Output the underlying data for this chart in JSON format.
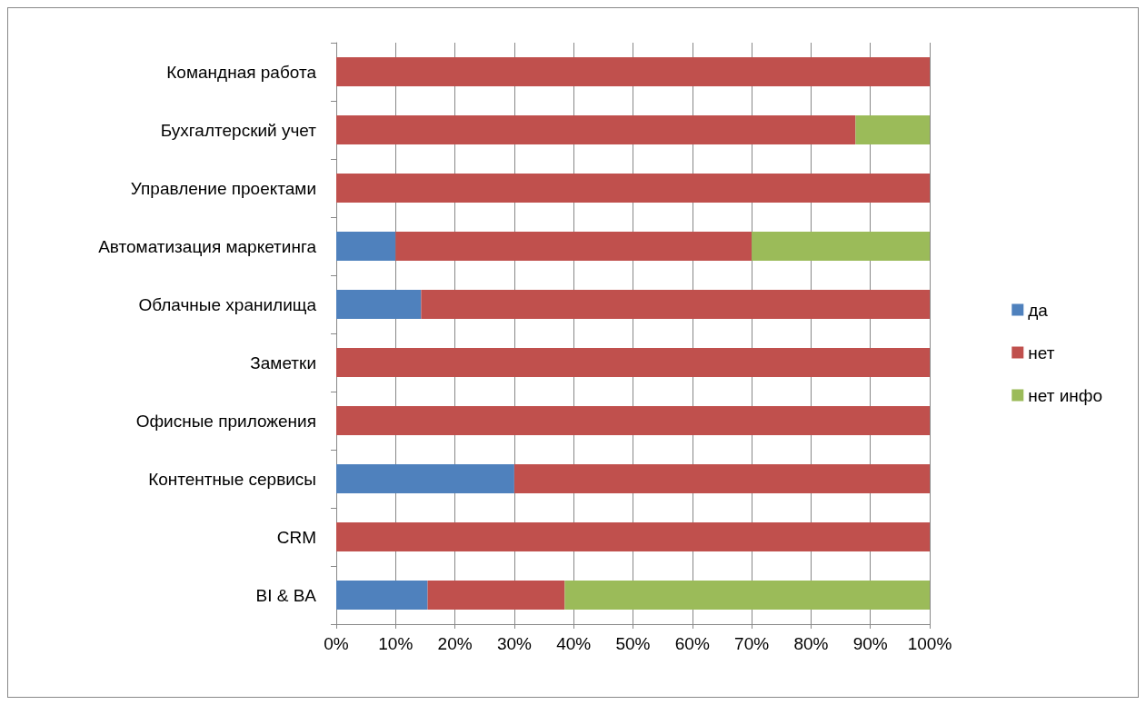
{
  "chart_data": {
    "type": "bar",
    "orientation": "horizontal",
    "stacked": true,
    "categories": [
      "Командная работа",
      "Бухгалтерский учет",
      "Управление проектами",
      "Автоматизация маркетинга",
      "Облачные хранилища",
      "Заметки",
      "Офисные приложения",
      "Контентные сервисы",
      "CRM",
      "BI & BA"
    ],
    "series": [
      {
        "name": "да",
        "color": "#4f81bd",
        "values": [
          0,
          0,
          0,
          10,
          14.3,
          0,
          0,
          30,
          0,
          15.4
        ]
      },
      {
        "name": "нет",
        "color": "#c0504d",
        "values": [
          100,
          87.5,
          100,
          60,
          85.7,
          100,
          100,
          70,
          100,
          23.1
        ]
      },
      {
        "name": "нет инфо",
        "color": "#9bbb59",
        "values": [
          0,
          12.5,
          0,
          30,
          0,
          0,
          0,
          0,
          0,
          61.5
        ]
      }
    ],
    "xlim": [
      0,
      100
    ],
    "xticks": [
      {
        "value": 0,
        "label": "0%"
      },
      {
        "value": 10,
        "label": "10%"
      },
      {
        "value": 20,
        "label": "20%"
      },
      {
        "value": 30,
        "label": "30%"
      },
      {
        "value": 40,
        "label": "40%"
      },
      {
        "value": 50,
        "label": "50%"
      },
      {
        "value": 60,
        "label": "60%"
      },
      {
        "value": 70,
        "label": "70%"
      },
      {
        "value": 80,
        "label": "80%"
      },
      {
        "value": 90,
        "label": "90%"
      },
      {
        "value": 100,
        "label": "100%"
      }
    ],
    "grid": "x",
    "legend": "right"
  }
}
